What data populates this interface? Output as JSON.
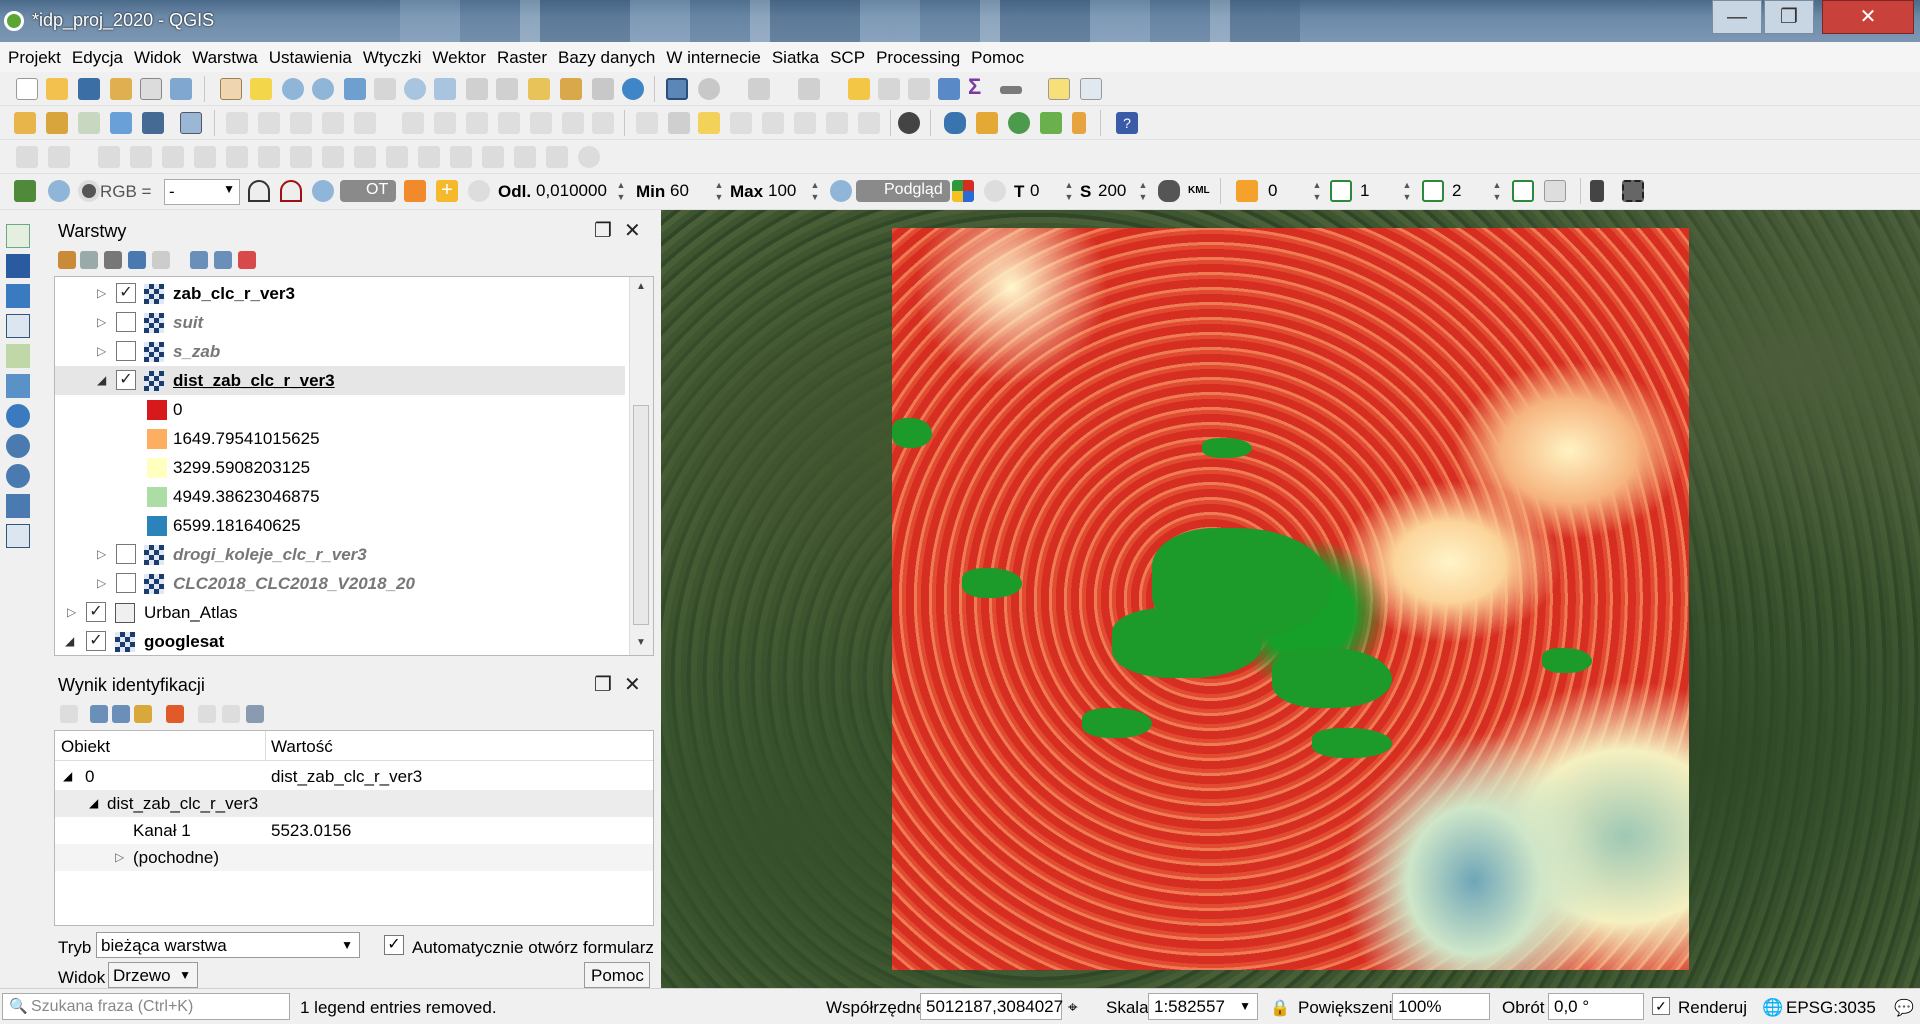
{
  "window": {
    "title": "*idp_proj_2020 - QGIS",
    "min": "—",
    "max": "❐",
    "close": "✕"
  },
  "menubar": [
    "Projekt",
    "Edycja",
    "Widok",
    "Warstwa",
    "Ustawienia",
    "Wtyczki",
    "Wektor",
    "Raster",
    "Bazy danych",
    "W internecie",
    "Siatka",
    "SCP",
    "Processing",
    "Pomoc"
  ],
  "scp_toolbar": {
    "rgb_label": "RGB =",
    "rgb_value": "-",
    "ot_label": "OT",
    "odl_label": "Odl.",
    "odl_value": "0,010000",
    "min_label": "Min",
    "min_value": "60",
    "max_label": "Max",
    "max_value": "100",
    "preview_label": "Podgląd",
    "t_label": "T",
    "t_value": "0",
    "s_label": "S",
    "s_value": "200",
    "kml_label": "KML",
    "band_r": "0",
    "band_g": "1",
    "band_b": "2"
  },
  "layers_panel": {
    "title": "Warstwy",
    "layers": [
      {
        "name": "zab_clc_r_ver3",
        "checked": true,
        "bold": true,
        "italic": false
      },
      {
        "name": "suit",
        "checked": false,
        "bold": true,
        "italic": true
      },
      {
        "name": "s_zab",
        "checked": false,
        "bold": true,
        "italic": true
      },
      {
        "name": "dist_zab_clc_r_ver3",
        "checked": true,
        "bold": true,
        "italic": false,
        "underline": true
      },
      {
        "name": "drogi_koleje_clc_r_ver3",
        "checked": false,
        "bold": true,
        "italic": true
      },
      {
        "name": "CLC2018_CLC2018_V2018_20",
        "checked": false,
        "bold": true,
        "italic": true
      },
      {
        "name": "Urban_Atlas",
        "checked": true,
        "bold": false,
        "italic": false
      },
      {
        "name": "googlesat",
        "checked": true,
        "bold": true,
        "italic": false
      }
    ],
    "legend": [
      {
        "value": "0",
        "color": "#d7191c"
      },
      {
        "value": "1649.79541015625",
        "color": "#fdae61"
      },
      {
        "value": "3299.5908203125",
        "color": "#ffffbf"
      },
      {
        "value": "4949.38623046875",
        "color": "#abdda4"
      },
      {
        "value": "6599.181640625",
        "color": "#2b83ba"
      }
    ]
  },
  "ident_panel": {
    "title": "Wynik identyfikacji",
    "col_object": "Obiekt",
    "col_value": "Wartość",
    "rows": {
      "r0_obj": "0",
      "r0_val": "dist_zab_clc_r_ver3",
      "r1_obj": "dist_zab_clc_r_ver3",
      "r2_obj": "Kanał 1",
      "r2_val": "5523.0156",
      "r3_obj": "(pochodne)"
    },
    "mode_label": "Tryb",
    "mode_value": "bieżąca warstwa",
    "auto_open_label": "Automatycznie otwórz formularz",
    "view_label": "Widok",
    "view_value": "Drzewo",
    "help_button": "Pomoc"
  },
  "statusbar": {
    "search_placeholder": "Szukana fraza (Ctrl+K)",
    "message": "1 legend entries removed.",
    "coords_label": "Współrzędne",
    "coords_value": "5012187,3084027",
    "scale_label": "Skala",
    "scale_value": "1:582557",
    "magnify_label": "Powiększenie",
    "magnify_value": "100%",
    "rotation_label": "Obrót",
    "rotation_value": "0,0 °",
    "render_label": "Renderuj",
    "crs": "EPSG:3035"
  }
}
